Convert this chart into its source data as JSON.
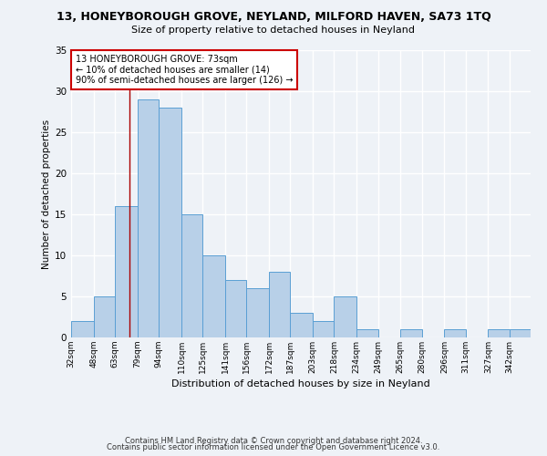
{
  "title": "13, HONEYBOROUGH GROVE, NEYLAND, MILFORD HAVEN, SA73 1TQ",
  "subtitle": "Size of property relative to detached houses in Neyland",
  "xlabel": "Distribution of detached houses by size in Neyland",
  "ylabel": "Number of detached properties",
  "footer_line1": "Contains HM Land Registry data © Crown copyright and database right 2024.",
  "footer_line2": "Contains public sector information licensed under the Open Government Licence v3.0.",
  "bin_labels": [
    "32sqm",
    "48sqm",
    "63sqm",
    "79sqm",
    "94sqm",
    "110sqm",
    "125sqm",
    "141sqm",
    "156sqm",
    "172sqm",
    "187sqm",
    "203sqm",
    "218sqm",
    "234sqm",
    "249sqm",
    "265sqm",
    "280sqm",
    "296sqm",
    "311sqm",
    "327sqm",
    "342sqm"
  ],
  "bin_edges": [
    32,
    48,
    63,
    79,
    94,
    110,
    125,
    141,
    156,
    172,
    187,
    203,
    218,
    234,
    249,
    265,
    280,
    296,
    311,
    327,
    342,
    357
  ],
  "bar_heights": [
    2,
    5,
    16,
    29,
    28,
    15,
    10,
    7,
    6,
    8,
    3,
    2,
    5,
    1,
    0,
    1,
    0,
    1,
    0,
    1,
    1
  ],
  "bar_color": "#b8d0e8",
  "bar_edge_color": "#5a9fd4",
  "background_color": "#eef2f7",
  "grid_color": "#ffffff",
  "annotation_text": "13 HONEYBOROUGH GROVE: 73sqm\n← 10% of detached houses are smaller (14)\n90% of semi-detached houses are larger (126) →",
  "annotation_box_color": "#ffffff",
  "annotation_box_edge": "#cc0000",
  "red_line_x": 73,
  "ylim": [
    0,
    35
  ],
  "yticks": [
    0,
    5,
    10,
    15,
    20,
    25,
    30,
    35
  ]
}
